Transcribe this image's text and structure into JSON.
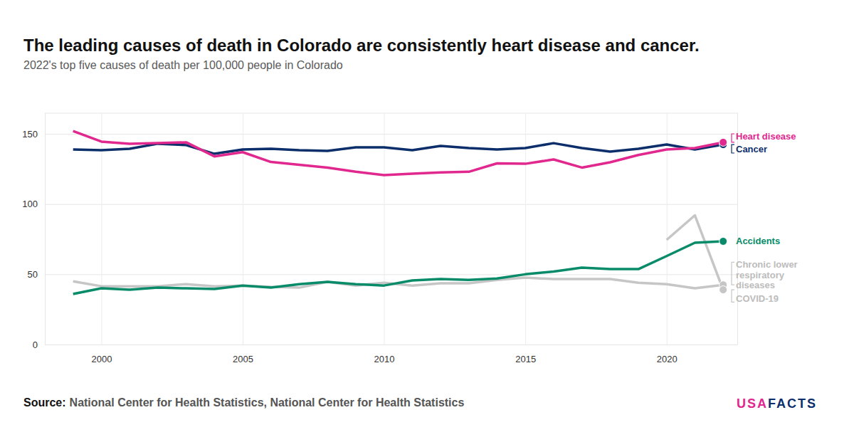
{
  "chart_data": {
    "type": "line",
    "title": "The leading causes of death in Colorado are consistently heart disease and cancer.",
    "subtitle": "2022's top five causes of death per 100,000 people in Colorado",
    "x": [
      1999,
      2000,
      2001,
      2002,
      2003,
      2004,
      2005,
      2006,
      2007,
      2008,
      2009,
      2010,
      2011,
      2012,
      2013,
      2014,
      2015,
      2016,
      2017,
      2018,
      2019,
      2020,
      2021,
      2022
    ],
    "xlim": [
      1998,
      2022.5
    ],
    "xticks": [
      2000,
      2005,
      2010,
      2015,
      2020
    ],
    "ylim": [
      0,
      165
    ],
    "yticks": [
      0,
      50,
      100,
      150
    ],
    "grid": true,
    "marker": "circle",
    "series": [
      {
        "name": "Heart disease",
        "color": "#e0288f",
        "values": [
          152,
          144.5,
          143,
          143.4,
          144,
          134,
          137,
          130,
          128,
          126,
          123,
          120.6,
          121.6,
          122.6,
          123,
          129,
          128.7,
          131.8,
          126,
          129.8,
          135,
          138.9,
          139.9,
          144
        ]
      },
      {
        "name": "Cancer",
        "color": "#0c2f6b",
        "values": [
          138.9,
          138.4,
          139.4,
          143,
          142,
          135.8,
          138.9,
          139.4,
          138.4,
          137.9,
          140.4,
          140.4,
          138.4,
          141.4,
          139.9,
          138.9,
          139.9,
          143.4,
          139.9,
          137.4,
          139.4,
          142.4,
          138.9,
          142.4
        ]
      },
      {
        "name": "Accidents",
        "color": "#078b69",
        "values": [
          36,
          40,
          39,
          40.5,
          40,
          39.5,
          42,
          40.5,
          43,
          44.6,
          43,
          42,
          45.6,
          46.6,
          46,
          47,
          50,
          52,
          54.7,
          53.7,
          53.7,
          63,
          72.5,
          73.5
        ]
      },
      {
        "name": "Chronic lower respiratory diseases",
        "color": "#c6c6c6",
        "values": [
          45,
          41.5,
          41.5,
          41.5,
          43,
          41.5,
          42,
          41,
          40.5,
          44.6,
          42,
          44,
          42,
          43.6,
          43.6,
          46,
          47.6,
          46.6,
          46.6,
          46.6,
          44,
          43,
          40,
          42.5
        ]
      },
      {
        "name": "COVID-19",
        "color": "#c6c6c6",
        "values": [
          null,
          null,
          null,
          null,
          null,
          null,
          null,
          null,
          null,
          null,
          null,
          null,
          null,
          null,
          null,
          null,
          null,
          null,
          null,
          null,
          null,
          74.5,
          92,
          39
        ]
      }
    ]
  },
  "source_label": "Source:",
  "source": "National Center for Health Statistics, National Center for Health Statistics",
  "logo": [
    "USA",
    "FACTS"
  ]
}
